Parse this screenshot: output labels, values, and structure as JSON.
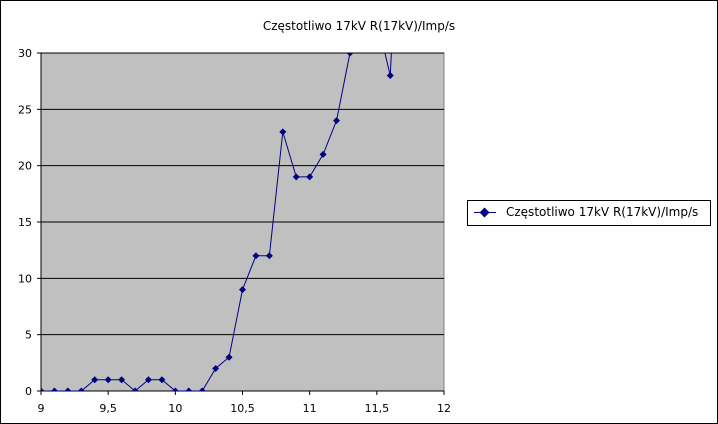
{
  "chart_data": {
    "type": "line",
    "title": "Częstotliwo 17kV R(17kV)/Imp/s",
    "xlabel": "",
    "ylabel": "",
    "xlim": [
      9,
      12
    ],
    "ylim": [
      0,
      30
    ],
    "x_ticks": [
      "9",
      "9,5",
      "10",
      "10,5",
      "11",
      "11,5",
      "12"
    ],
    "y_ticks": [
      "0",
      "5",
      "10",
      "15",
      "20",
      "25",
      "30"
    ],
    "grid": "horizontal",
    "legend": "right",
    "plot_background": "#C0C0C0",
    "series_color": "#000080",
    "series": [
      {
        "name": "Częstotliwo 17kV R(17kV)/Imp/s",
        "x": [
          9.0,
          9.1,
          9.2,
          9.3,
          9.4,
          9.5,
          9.6,
          9.7,
          9.8,
          9.9,
          10.0,
          10.1,
          10.2,
          10.3,
          10.4,
          10.5,
          10.6,
          10.7,
          10.8,
          10.9,
          11.0,
          11.1,
          11.2,
          11.3,
          11.6
        ],
        "y": [
          0,
          0,
          0,
          0,
          1,
          1,
          1,
          0,
          1,
          1,
          0,
          0,
          0,
          2,
          3,
          9,
          12,
          12,
          23,
          19,
          19,
          21,
          24,
          30,
          28
        ]
      }
    ]
  }
}
